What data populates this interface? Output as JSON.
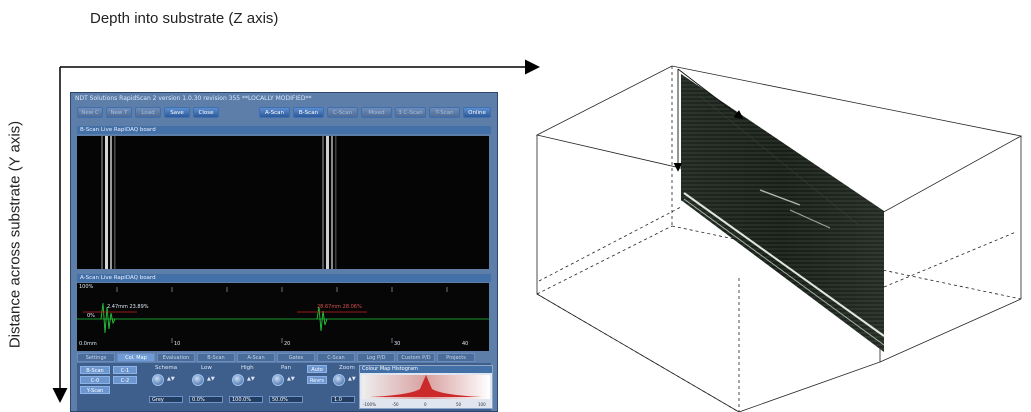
{
  "labels": {
    "z_axis": "Depth into substrate (Z axis)",
    "y_axis": "Distance across substrate (Y axis)"
  },
  "window": {
    "title": "NDT Solutions RapidScan 2 version 1.0.30 revision 355 **LOCALLY MODIFIED**",
    "toolbar": [
      "New C",
      "New T",
      "Load",
      "Save",
      "Close"
    ],
    "view_buttons": [
      "A-Scan",
      "B-Scan",
      "C-Scan",
      "Mixed",
      "3 C-Scan",
      "T-Scan",
      "Online"
    ],
    "bscan_title": "B-Scan Live RapiDAQ board",
    "ascan_title": "A-Scan Live RapiDAQ board",
    "ascan": {
      "y_top": "100%",
      "y_mid": "0%",
      "x_left": "0.0mm",
      "ticks": [
        "10",
        "20",
        "30",
        "40"
      ],
      "marker1": "2.47mm 23.89%",
      "marker2": "28.67mm 28.06%"
    },
    "tabs": [
      "Settings",
      "Col. Map",
      "Evaluation",
      "B-Scan",
      "A-Scan",
      "Gates",
      "C-Scan",
      "Log P/D",
      "Custom P/D",
      "Projects"
    ],
    "side_buttons": [
      "B-Scan",
      "C-1",
      "C-0",
      "C-2",
      "Y-Scan"
    ],
    "controls": [
      {
        "label": "Schema",
        "value": "Grey"
      },
      {
        "label": "Low",
        "value": "0.0%"
      },
      {
        "label": "High",
        "value": "100.0%"
      },
      {
        "label": "Pan",
        "value": "50.0%"
      },
      {
        "label": "Auto",
        "value": "Revrs"
      },
      {
        "label": "Zoom",
        "value": "1.0"
      }
    ],
    "histogram": {
      "title": "Colour Map Histogram",
      "axis": [
        "-100%",
        "-50",
        "0",
        "50",
        "100"
      ]
    }
  },
  "colors": {
    "win_bg": "#5c7ea8",
    "trace": "#22c83a",
    "marker": "#c02020"
  }
}
